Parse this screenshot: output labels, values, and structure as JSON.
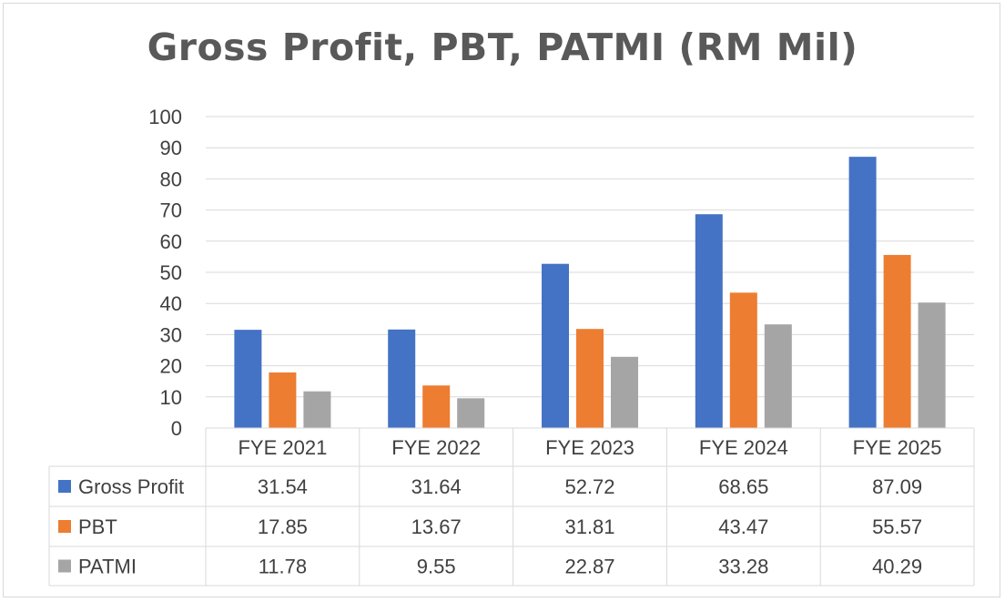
{
  "chart_data": {
    "type": "bar",
    "title": "Gross Profit, PBT, PATMI (RM Mil)",
    "categories": [
      "FYE 2021",
      "FYE 2022",
      "FYE 2023",
      "FYE 2024",
      "FYE 2025"
    ],
    "series": [
      {
        "name": "Gross Profit",
        "color": "#4472c4",
        "values": [
          31.54,
          31.64,
          52.72,
          68.65,
          87.09
        ]
      },
      {
        "name": "PBT",
        "color": "#ed7d31",
        "values": [
          17.85,
          13.67,
          31.81,
          43.47,
          55.57
        ]
      },
      {
        "name": "PATMI",
        "color": "#a5a5a5",
        "values": [
          11.78,
          9.55,
          22.87,
          33.28,
          40.29
        ]
      }
    ],
    "ylim": [
      0,
      100
    ],
    "yticks": [
      "0",
      "10",
      "20",
      "30",
      "40",
      "50",
      "60",
      "70",
      "80",
      "90",
      "100"
    ],
    "table_values": [
      [
        "31.54",
        "31.64",
        "52.72",
        "68.65",
        "87.09"
      ],
      [
        "17.85",
        "13.67",
        "31.81",
        "43.47",
        "55.57"
      ],
      [
        "11.78",
        "9.55",
        "22.87",
        "33.28",
        "40.29"
      ]
    ],
    "grid": true,
    "legend": "data-table"
  }
}
